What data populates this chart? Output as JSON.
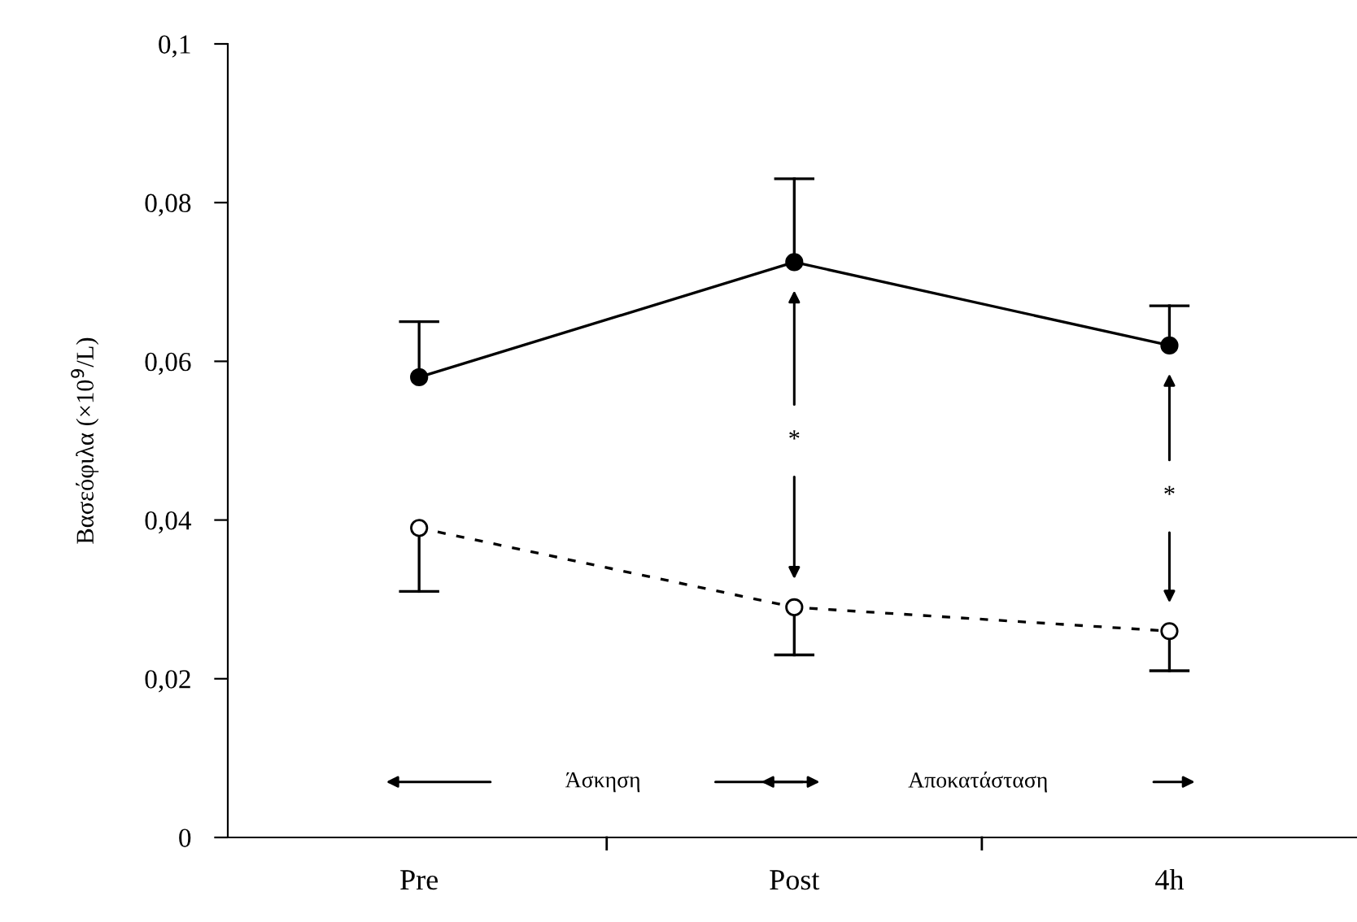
{
  "chart_data": {
    "type": "line",
    "ylabel": "Βασεόφιλα (×10$^{9}$/L)",
    "categories": [
      "Pre",
      "Post",
      "4h"
    ],
    "series": [
      {
        "color": "#000000",
        "values": [
          0.058,
          0.0725,
          0.062
        ],
        "errors": [
          [
            0.058,
            0.065
          ],
          [
            0.0725,
            0.083
          ],
          [
            0.062,
            0.067
          ]
        ],
        "line_style": "solid",
        "marker": "circle"
      },
      {
        "color": "#000000",
        "values": [
          0.039,
          0.029,
          0.026
        ],
        "errors": [
          [
            0.031,
            0.039
          ],
          [
            0.023,
            0.029
          ],
          [
            0.021,
            0.026
          ]
        ],
        "line_style": "dashed",
        "marker": "circle"
      }
    ],
    "ylim": [
      0,
      0.1
    ],
    "yticks": [
      {
        "value": 0,
        "label": "0"
      },
      {
        "value": 0.02,
        "label": "0,02"
      },
      {
        "value": 0.04,
        "label": "0,04"
      },
      {
        "value": 0.06,
        "label": "0,06"
      },
      {
        "value": 0.08,
        "label": "0,08"
      },
      {
        "value": 0.1,
        "label": "0,1"
      }
    ],
    "annotations": [
      {
        "text": "*",
        "x": "Post",
        "y": 0.05
      },
      {
        "text": "*",
        "x": "4h",
        "y": 0.043
      },
      "Άσκηση",
      "Αποκατάσταση"
    ],
    "grid": false,
    "legend": false
  }
}
